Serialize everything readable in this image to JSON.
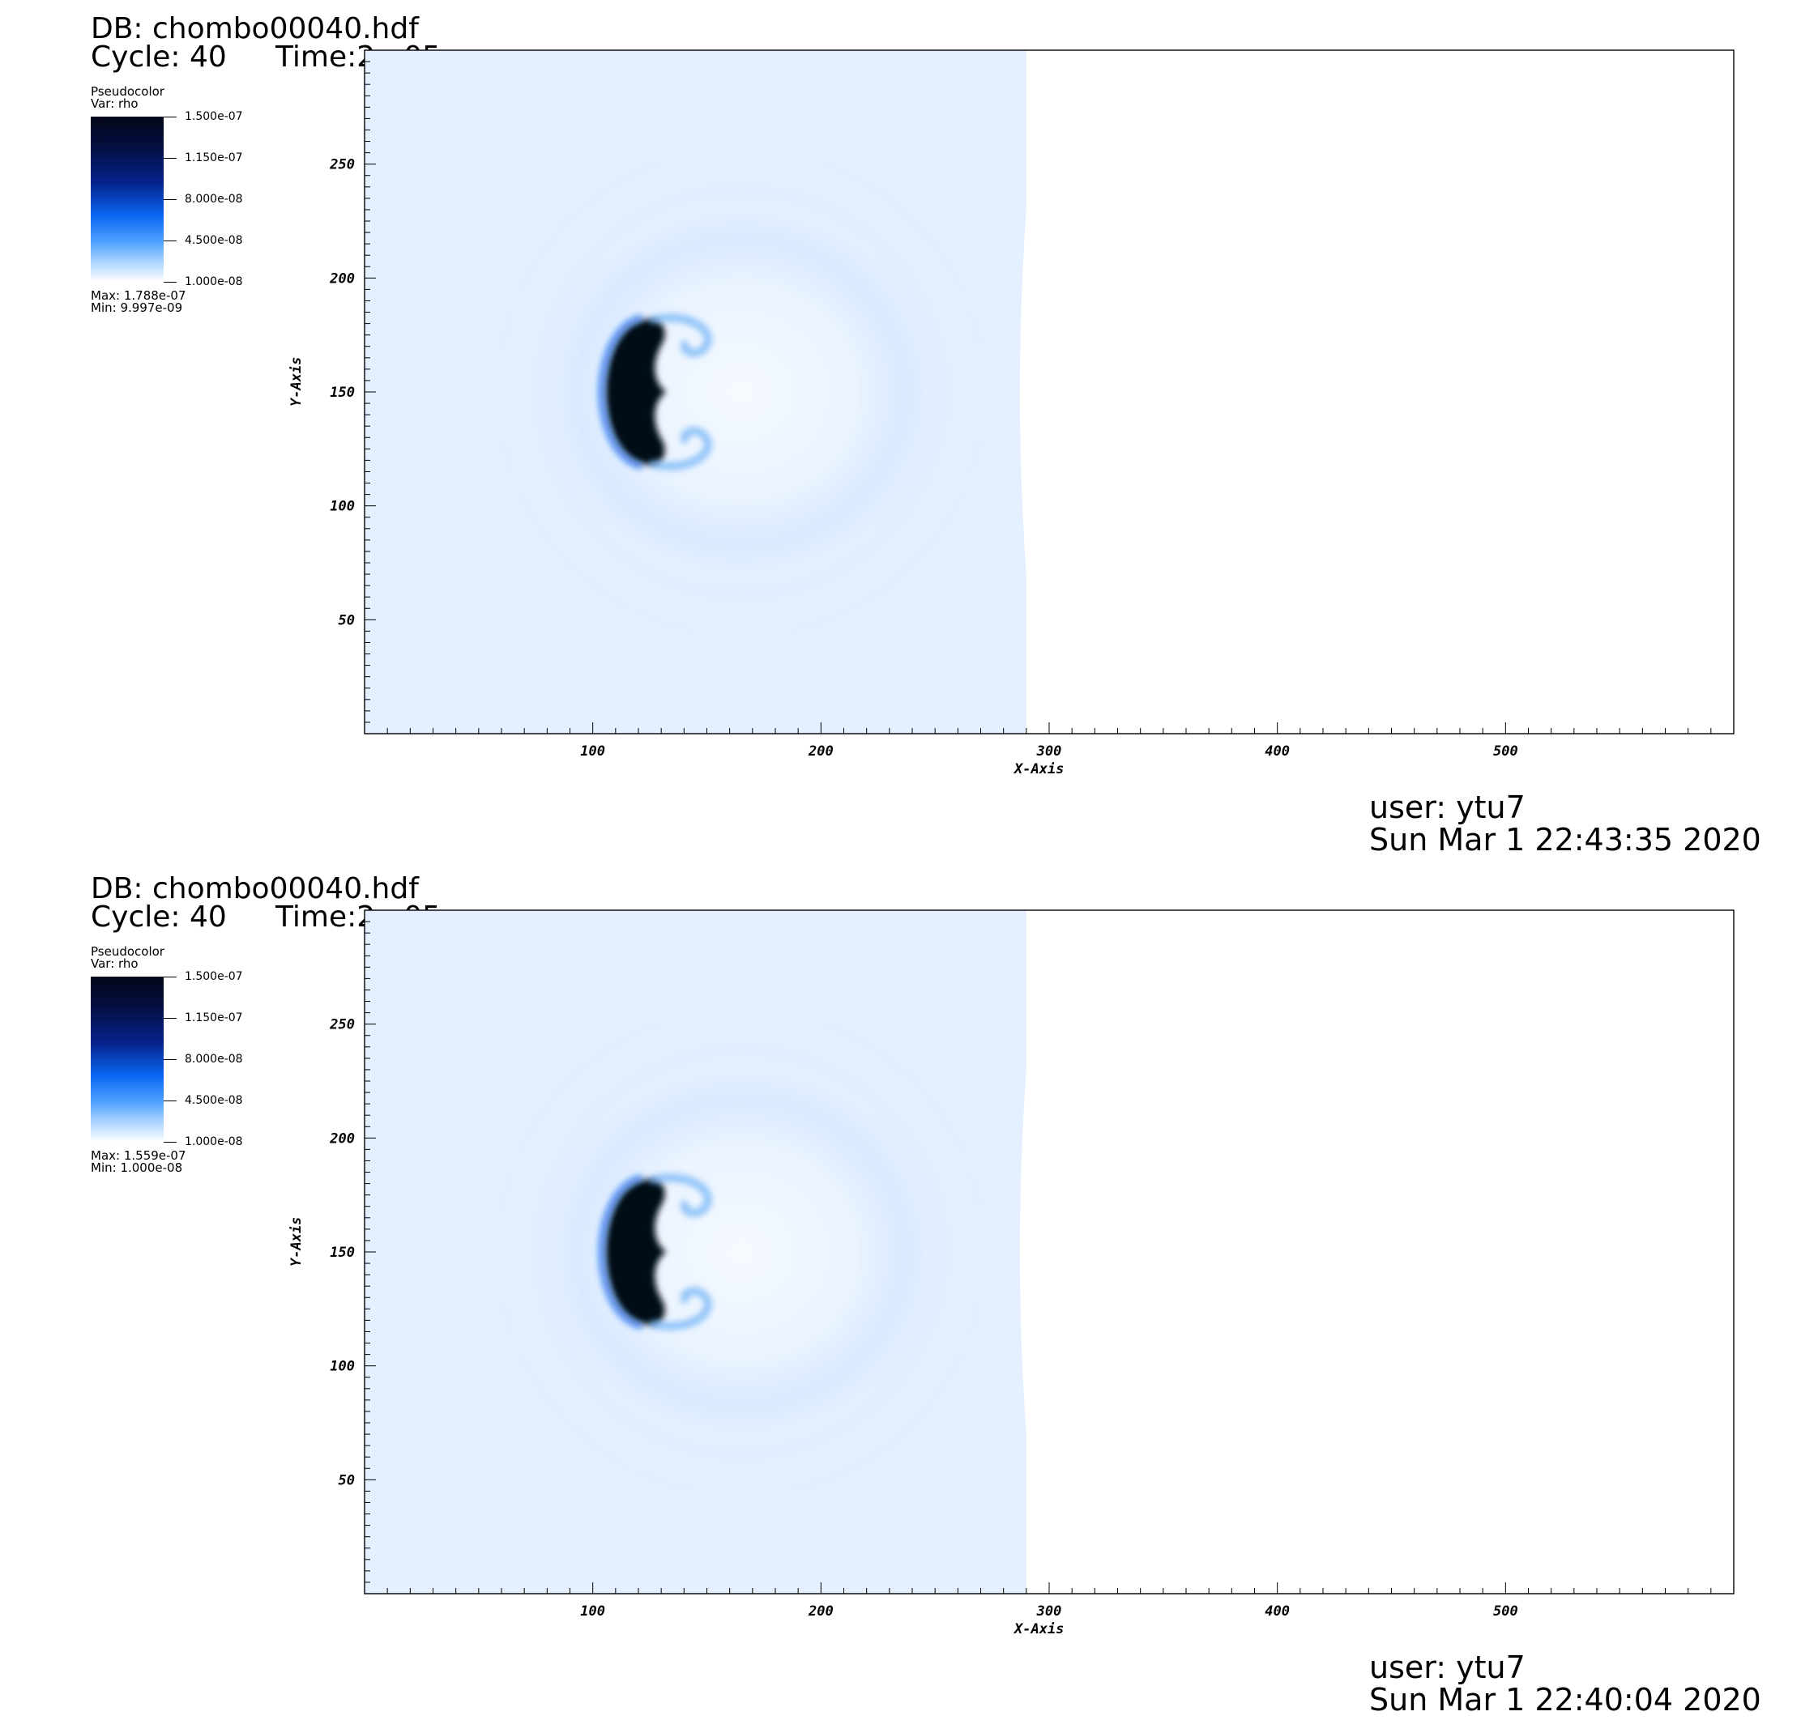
{
  "panels": [
    {
      "db": "DB: chombo00040.hdf",
      "cycle": "Cycle: 40",
      "time": "Time:2e-05",
      "legend": {
        "title": "Pseudocolor",
        "var": "Var: rho",
        "labels": [
          "1.500e-07",
          "1.150e-07",
          "8.000e-08",
          "4.500e-08",
          "1.000e-08"
        ],
        "max": "Max:  1.788e-07",
        "min": "Min:  9.997e-09"
      },
      "user": "user: ytu7",
      "date": "Sun Mar  1 22:43:35 2020"
    },
    {
      "db": "DB: chombo00040.hdf",
      "cycle": "Cycle: 40",
      "time": "Time:2e-05",
      "legend": {
        "title": "Pseudocolor",
        "var": "Var: rho",
        "labels": [
          "1.500e-07",
          "1.150e-07",
          "8.000e-08",
          "4.500e-08",
          "1.000e-08"
        ],
        "max": "Max:  1.559e-07",
        "min": "Min:  1.000e-08"
      },
      "user": "user: ytu7",
      "date": "Sun Mar  1 22:40:04 2020"
    }
  ],
  "chart_data": [
    {
      "type": "heatmap",
      "title": "",
      "xlabel": "X-Axis",
      "ylabel": "Y-Axis",
      "xlim": [
        0,
        600
      ],
      "ylim": [
        0,
        300
      ],
      "x_ticks": [
        100,
        200,
        300,
        400,
        500
      ],
      "y_ticks": [
        50,
        100,
        150,
        200,
        250
      ],
      "variable": "rho",
      "colorbar": {
        "values": [
          1.5e-07,
          1.15e-07,
          8e-08,
          4.5e-08,
          1e-08
        ],
        "max": 1.788e-07,
        "min": 9.997e-09
      },
      "colors": {
        "high": "#050818",
        "mid": "#0a66f2",
        "low": "#ffffff",
        "ambient": "#e4f0ff"
      },
      "data_extent_x": 290
    },
    {
      "type": "heatmap",
      "title": "",
      "xlabel": "X-Axis",
      "ylabel": "Y-Axis",
      "xlim": [
        0,
        600
      ],
      "ylim": [
        0,
        300
      ],
      "x_ticks": [
        100,
        200,
        300,
        400,
        500
      ],
      "y_ticks": [
        50,
        100,
        150,
        200,
        250
      ],
      "variable": "rho",
      "colorbar": {
        "values": [
          1.5e-07,
          1.15e-07,
          8e-08,
          4.5e-08,
          1e-08
        ],
        "max": 1.559e-07,
        "min": 1e-08
      },
      "colors": {
        "high": "#050818",
        "mid": "#0a66f2",
        "low": "#ffffff",
        "ambient": "#e4f0ff"
      },
      "data_extent_x": 290
    }
  ]
}
